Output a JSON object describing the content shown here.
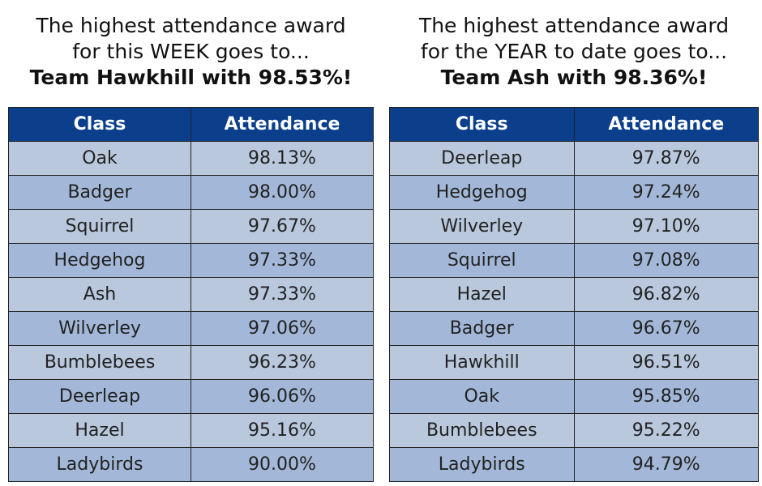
{
  "week": {
    "line1": "The highest attendance award",
    "line2": "for this WEEK goes to...",
    "winner": "Team Hawkhill with 98.53%!",
    "headers": [
      "Class",
      "Attendance"
    ],
    "rows": [
      [
        "Oak",
        "98.13%"
      ],
      [
        "Badger",
        "98.00%"
      ],
      [
        "Squirrel",
        "97.67%"
      ],
      [
        "Hedgehog",
        "97.33%"
      ],
      [
        "Ash",
        "97.33%"
      ],
      [
        "Wilverley",
        "97.06%"
      ],
      [
        "Bumblebees",
        "96.23%"
      ],
      [
        "Deerleap",
        "96.06%"
      ],
      [
        "Hazel",
        "95.16%"
      ],
      [
        "Ladybirds",
        "90.00%"
      ]
    ]
  },
  "year": {
    "line1": "The highest attendance award",
    "line2": "for the YEAR to date goes to...",
    "winner": "Team Ash with 98.36%!",
    "headers": [
      "Class",
      "Attendance"
    ],
    "rows": [
      [
        "Deerleap",
        "97.87%"
      ],
      [
        "Hedgehog",
        "97.24%"
      ],
      [
        "Wilverley",
        "97.10%"
      ],
      [
        "Squirrel",
        "97.08%"
      ],
      [
        "Hazel",
        "96.82%"
      ],
      [
        "Badger",
        "96.67%"
      ],
      [
        "Hawkhill",
        "96.51%"
      ],
      [
        "Oak",
        "95.85%"
      ],
      [
        "Bumblebees",
        "95.22%"
      ],
      [
        "Ladybirds",
        "94.79%"
      ]
    ]
  }
}
